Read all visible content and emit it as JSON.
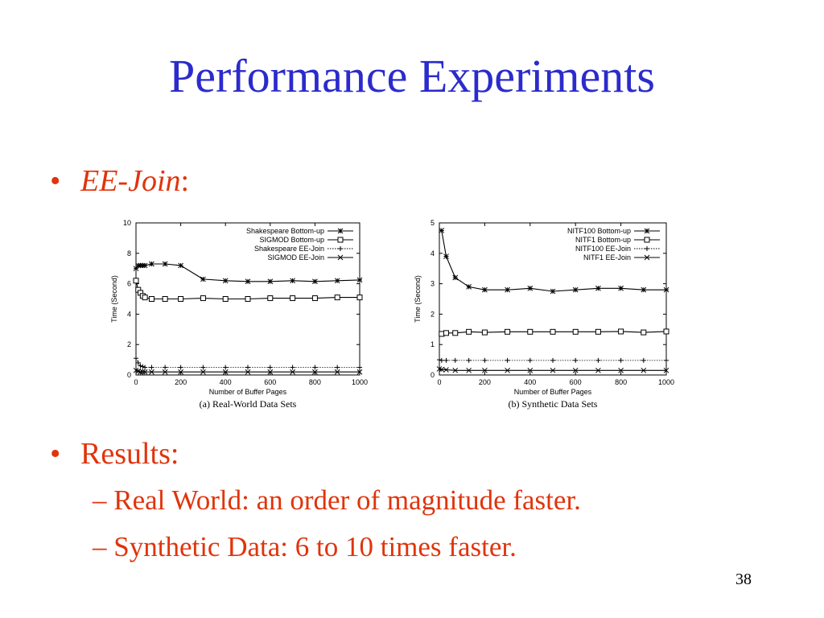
{
  "slide": {
    "title": "Performance Experiments",
    "bullet1_prefix": "EE-Join",
    "bullet1_suffix": ":",
    "bullet2": "Results:",
    "sub1": "– Real World: an order of magnitude faster.",
    "sub2": "– Synthetic Data: 6 to 10 times faster.",
    "page_number": "38",
    "bullet_glyph": "•"
  },
  "colors": {
    "title": "#2b2bcc",
    "text": "#e0340c"
  },
  "chart_data": [
    {
      "type": "line",
      "caption": "(a) Real-World Data Sets",
      "xlabel": "Number of Buffer Pages",
      "ylabel": "Time (Second)",
      "xlim": [
        0,
        1000
      ],
      "ylim": [
        0,
        10
      ],
      "xticks": [
        0,
        200,
        400,
        600,
        800,
        1000
      ],
      "yticks": [
        0,
        2,
        4,
        6,
        8,
        10
      ],
      "legend_position": "top-right",
      "series": [
        {
          "name": "Shakespeare Bottom-up",
          "marker": "star",
          "dash": "solid",
          "x": [
            0,
            10,
            20,
            30,
            40,
            70,
            130,
            200,
            300,
            400,
            500,
            600,
            700,
            800,
            900,
            1000
          ],
          "y": [
            7.0,
            7.2,
            7.2,
            7.2,
            7.2,
            7.3,
            7.3,
            7.2,
            6.3,
            6.2,
            6.15,
            6.15,
            6.2,
            6.15,
            6.2,
            6.25
          ]
        },
        {
          "name": "SIGMOD Bottom-up",
          "marker": "square",
          "dash": "solid",
          "x": [
            0,
            10,
            20,
            30,
            40,
            70,
            130,
            200,
            300,
            400,
            500,
            600,
            700,
            800,
            900,
            1000
          ],
          "y": [
            6.2,
            5.6,
            5.4,
            5.2,
            5.1,
            5.0,
            5.0,
            5.0,
            5.05,
            5.0,
            5.0,
            5.05,
            5.05,
            5.05,
            5.1,
            5.1
          ]
        },
        {
          "name": "Shakespeare EE-Join",
          "marker": "plus",
          "dash": "dotted",
          "x": [
            0,
            10,
            20,
            30,
            40,
            70,
            130,
            200,
            300,
            400,
            500,
            600,
            700,
            800,
            900,
            1000
          ],
          "y": [
            1.1,
            0.8,
            0.6,
            0.55,
            0.5,
            0.5,
            0.5,
            0.5,
            0.5,
            0.5,
            0.5,
            0.5,
            0.5,
            0.5,
            0.5,
            0.5
          ]
        },
        {
          "name": "SIGMOD EE-Join",
          "marker": "cross",
          "dash": "solid",
          "x": [
            0,
            10,
            20,
            30,
            40,
            70,
            130,
            200,
            300,
            400,
            500,
            600,
            700,
            800,
            900,
            1000
          ],
          "y": [
            0.3,
            0.25,
            0.2,
            0.2,
            0.2,
            0.2,
            0.2,
            0.2,
            0.2,
            0.2,
            0.2,
            0.2,
            0.2,
            0.2,
            0.2,
            0.2
          ]
        }
      ]
    },
    {
      "type": "line",
      "caption": "(b) Synthetic Data Sets",
      "xlabel": "Number of Buffer Pages",
      "ylabel": "Time (Second)",
      "xlim": [
        0,
        1000
      ],
      "ylim": [
        0,
        5
      ],
      "xticks": [
        0,
        200,
        400,
        600,
        800,
        1000
      ],
      "yticks": [
        0,
        1,
        2,
        3,
        4,
        5
      ],
      "legend_position": "top-right",
      "series": [
        {
          "name": "NITF100 Bottom-up",
          "marker": "star",
          "dash": "solid",
          "x": [
            10,
            30,
            70,
            130,
            200,
            300,
            400,
            500,
            600,
            700,
            800,
            900,
            1000
          ],
          "y": [
            4.75,
            3.9,
            3.2,
            2.9,
            2.8,
            2.8,
            2.85,
            2.75,
            2.8,
            2.85,
            2.85,
            2.8,
            2.8
          ]
        },
        {
          "name": "NITF1 Bottom-up",
          "marker": "square",
          "dash": "solid",
          "x": [
            10,
            30,
            70,
            130,
            200,
            300,
            400,
            500,
            600,
            700,
            800,
            900,
            1000
          ],
          "y": [
            1.35,
            1.38,
            1.38,
            1.42,
            1.4,
            1.42,
            1.42,
            1.42,
            1.42,
            1.42,
            1.43,
            1.4,
            1.43
          ]
        },
        {
          "name": "NITF100 EE-Join",
          "marker": "plus",
          "dash": "dotted",
          "x": [
            0,
            10,
            30,
            70,
            130,
            200,
            300,
            400,
            500,
            600,
            700,
            800,
            900,
            1000
          ],
          "y": [
            0.5,
            0.48,
            0.48,
            0.48,
            0.48,
            0.48,
            0.48,
            0.48,
            0.48,
            0.48,
            0.48,
            0.48,
            0.48,
            0.48
          ]
        },
        {
          "name": "NITF1 EE-Join",
          "marker": "cross",
          "dash": "solid",
          "x": [
            0,
            10,
            30,
            70,
            130,
            200,
            300,
            400,
            500,
            600,
            700,
            800,
            900,
            1000
          ],
          "y": [
            0.2,
            0.18,
            0.17,
            0.15,
            0.15,
            0.15,
            0.15,
            0.15,
            0.15,
            0.15,
            0.15,
            0.15,
            0.15,
            0.15
          ]
        }
      ]
    }
  ]
}
